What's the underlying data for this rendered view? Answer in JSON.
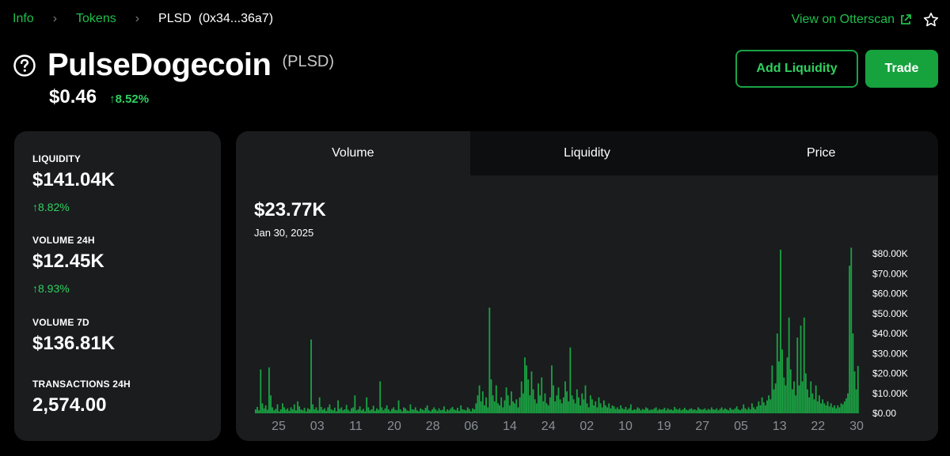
{
  "breadcrumb": {
    "items": [
      "Info",
      "Tokens"
    ],
    "current": "PLSD",
    "address": "(0x34...36a7)"
  },
  "header": {
    "otterscan_label": "View on Otterscan",
    "token_name": "PulseDogecoin",
    "token_symbol": "(PLSD)",
    "price": "$0.46",
    "price_change": "↑8.52%",
    "add_liquidity_label": "Add Liquidity",
    "trade_label": "Trade"
  },
  "stats": [
    {
      "label": "LIQUIDITY",
      "value": "$141.04K",
      "change": "↑8.82%"
    },
    {
      "label": "VOLUME 24H",
      "value": "$12.45K",
      "change": "↑8.93%"
    },
    {
      "label": "VOLUME 7D",
      "value": "$136.81K",
      "change": ""
    },
    {
      "label": "TRANSACTIONS 24H",
      "value": "2,574.00",
      "change": ""
    }
  ],
  "chart": {
    "tabs": [
      "Volume",
      "Liquidity",
      "Price"
    ],
    "active_tab": "Volume",
    "current_value": "$23.77K",
    "current_date": "Jan 30, 2025"
  },
  "colors": {
    "accent": "#1fbf4a",
    "bar": "#1aa343",
    "background": "#000000",
    "card": "#1a1c1e"
  },
  "chart_data": {
    "type": "bar",
    "title": "",
    "xlabel": "",
    "ylabel": "",
    "x_ticks": [
      "25",
      "03",
      "11",
      "20",
      "28",
      "06",
      "14",
      "24",
      "02",
      "10",
      "19",
      "27",
      "05",
      "13",
      "22",
      "30"
    ],
    "y_ticks": [
      "$80.00K",
      "$70.00K",
      "$60.00K",
      "$50.00K",
      "$40.00K",
      "$30.00K",
      "$20.00K",
      "$10.00K",
      "$0.00"
    ],
    "ylim": [
      0,
      80000
    ],
    "grid": false,
    "series": [
      {
        "values": [
          2000,
          3200,
          1500,
          22000,
          5000,
          2500,
          4000,
          1800,
          23000,
          9000,
          3000,
          1500,
          2200,
          4500,
          1000,
          2000,
          5000,
          3000,
          1800,
          2500,
          1200,
          3000,
          2000,
          4500,
          1500,
          6000,
          3500,
          2000,
          1500,
          2800,
          1000,
          2500,
          2000,
          37000,
          4500,
          2000,
          3000,
          1500,
          8000,
          3200,
          1800,
          2500,
          1200,
          3000,
          4500,
          2000,
          1500,
          2800,
          1000,
          6500,
          2200,
          3000,
          1500,
          2000,
          4200,
          1800,
          1000,
          2500,
          3000,
          9000,
          1500,
          2000,
          3500,
          1500,
          2200,
          1000,
          8000,
          3000,
          1500,
          2000,
          3800,
          1200,
          2500,
          1800,
          16000,
          3000,
          1500,
          2500,
          4000,
          2000,
          1000,
          2200,
          3000,
          1800,
          1500,
          6500,
          2000,
          1000,
          3000,
          2500,
          1500,
          1200,
          4500,
          2000,
          1800,
          3000,
          1500,
          1000,
          2500,
          2000,
          1500,
          2800,
          4000,
          1500,
          1000,
          2000,
          3000,
          2000,
          1200,
          2500,
          1500,
          1800,
          3500,
          1000,
          2000,
          1500,
          2500,
          3200,
          2000,
          1500,
          2800,
          1200,
          4000,
          2000,
          1800,
          1500,
          3000,
          2200,
          1000,
          2500,
          2000,
          5000,
          9000,
          14000,
          6000,
          11000,
          4000,
          8000,
          3000,
          53000,
          17000,
          9000,
          6000,
          14000,
          5000,
          4000,
          8000,
          3000,
          6500,
          13000,
          9000,
          4000,
          11000,
          6000,
          5000,
          7000,
          3000,
          8000,
          16000,
          10000,
          28000,
          24000,
          17000,
          9000,
          21000,
          12000,
          7000,
          5000,
          15000,
          9000,
          18000,
          6000,
          10000,
          5000,
          4000,
          8000,
          24000,
          14000,
          6000,
          9000,
          13000,
          7000,
          5000,
          8000,
          16000,
          11000,
          6000,
          33000,
          9000,
          7000,
          5000,
          12000,
          8000,
          4000,
          10000,
          7000,
          14000,
          5000,
          3000,
          9000,
          7000,
          4000,
          6000,
          3000,
          8000,
          5000,
          3000,
          6500,
          4000,
          3000,
          5000,
          2500,
          4000,
          3500,
          2200,
          3000,
          2000,
          4000,
          2500,
          2000,
          3200,
          1800,
          2500,
          4500,
          1500,
          2000,
          1800,
          3000,
          2500,
          1500,
          2200,
          1800,
          3000,
          2500,
          1500,
          2000,
          1800,
          2500,
          3000,
          1500,
          2200,
          1800,
          2000,
          2800,
          1500,
          2500,
          1800,
          2000,
          1500,
          3200,
          2200,
          1800,
          2500,
          1500,
          2000,
          2800,
          1800,
          1500,
          2200,
          2500,
          1800,
          2000,
          1500,
          3000,
          2200,
          1800,
          2000,
          2500,
          1500,
          2200,
          1800,
          3000,
          2000,
          1800,
          2500,
          1500,
          2200,
          3000,
          1800,
          2500,
          2000,
          1500,
          2800,
          2000,
          1800,
          2500,
          3500,
          2000,
          1500,
          2200,
          4500,
          2500,
          1800,
          3000,
          2000,
          5000,
          3000,
          2000,
          3500,
          6000,
          4000,
          8000,
          5500,
          4000,
          6500,
          9000,
          7000,
          24000,
          12000,
          15000,
          40000,
          26000,
          82000,
          32000,
          18000,
          14000,
          28000,
          48000,
          22000,
          12000,
          16000,
          9000,
          38000,
          14000,
          44000,
          16000,
          48000,
          20000,
          12000,
          8000,
          16000,
          10000,
          7000,
          14000,
          6000,
          9000,
          5000,
          7000,
          5000,
          4000,
          6000,
          3500,
          5000,
          3000,
          4000,
          2500,
          4000,
          3000,
          5000,
          4500,
          6000,
          7500,
          10000,
          74000,
          83000,
          40000,
          21000,
          12000,
          23770
        ]
      }
    ]
  }
}
